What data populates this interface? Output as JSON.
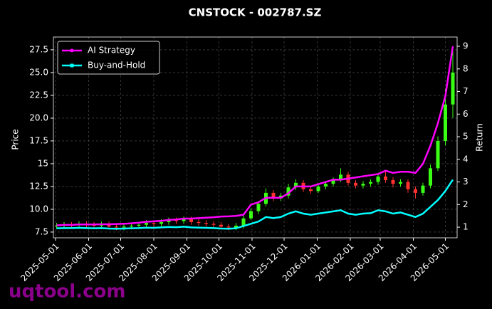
{
  "chart_data": {
    "type": "candlestick",
    "title": "CNSTOCK - 002787.SZ",
    "y_label": "Price",
    "y2_label": "Return",
    "watermark": "uqtool.com",
    "x": [
      "2025-05-02",
      "2025-05-09",
      "2025-05-16",
      "2025-05-23",
      "2025-05-30",
      "2025-06-06",
      "2025-06-13",
      "2025-06-20",
      "2025-06-27",
      "2025-07-04",
      "2025-07-11",
      "2025-07-18",
      "2025-07-25",
      "2025-08-01",
      "2025-08-08",
      "2025-08-15",
      "2025-08-22",
      "2025-08-29",
      "2025-09-05",
      "2025-09-12",
      "2025-09-19",
      "2025-09-26",
      "2025-10-03",
      "2025-10-10",
      "2025-10-17",
      "2025-10-24",
      "2025-10-31",
      "2025-11-07",
      "2025-11-14",
      "2025-11-21",
      "2025-11-28",
      "2025-12-05",
      "2025-12-12",
      "2025-12-19",
      "2025-12-26",
      "2026-01-02",
      "2026-01-09",
      "2026-01-16",
      "2026-01-23",
      "2026-01-30",
      "2026-02-06",
      "2026-02-13",
      "2026-02-20",
      "2026-02-27",
      "2026-03-06",
      "2026-03-13",
      "2026-03-20",
      "2026-03-27",
      "2026-04-03",
      "2026-04-10",
      "2026-04-17",
      "2026-04-24",
      "2026-05-01",
      "2026-05-08"
    ],
    "open": [
      8.15,
      8.2,
      8.3,
      8.25,
      8.4,
      8.3,
      8.2,
      8.35,
      8.1,
      8.0,
      8.1,
      8.2,
      8.3,
      8.5,
      8.4,
      8.6,
      8.8,
      8.7,
      8.9,
      8.6,
      8.5,
      8.4,
      8.3,
      8.1,
      8.0,
      8.2,
      9.0,
      9.8,
      10.6,
      11.8,
      11.2,
      11.5,
      12.4,
      12.9,
      12.2,
      12.0,
      12.5,
      12.8,
      13.2,
      13.8,
      12.9,
      12.6,
      12.8,
      13.0,
      13.6,
      13.2,
      12.8,
      13.0,
      12.2,
      11.8,
      12.6,
      14.5,
      17.5,
      21.5
    ],
    "high": [
      8.5,
      8.6,
      8.6,
      8.7,
      8.7,
      8.6,
      8.65,
      8.65,
      8.4,
      8.4,
      8.5,
      8.6,
      8.8,
      8.8,
      8.9,
      9.1,
      9.1,
      9.2,
      9.2,
      8.9,
      8.8,
      8.7,
      8.6,
      8.4,
      8.5,
      9.3,
      10.1,
      10.9,
      12.3,
      12.1,
      11.8,
      12.8,
      13.3,
      13.2,
      12.5,
      12.8,
      13.1,
      13.5,
      14.5,
      14.1,
      13.2,
      13.1,
      13.3,
      14.0,
      14.2,
      13.5,
      13.3,
      13.3,
      12.5,
      12.9,
      14.9,
      18.0,
      23.2,
      27.4
    ],
    "low": [
      7.85,
      7.9,
      7.95,
      7.95,
      8.0,
      7.9,
      7.9,
      7.8,
      7.7,
      7.7,
      7.8,
      7.9,
      8.0,
      8.1,
      8.1,
      8.3,
      8.4,
      8.4,
      8.3,
      8.2,
      8.1,
      8.0,
      7.8,
      7.7,
      7.7,
      7.9,
      8.8,
      9.5,
      10.3,
      10.9,
      10.9,
      11.2,
      12.1,
      11.9,
      11.7,
      11.8,
      12.2,
      12.5,
      13.0,
      12.6,
      12.3,
      12.3,
      12.5,
      12.7,
      12.9,
      12.4,
      12.5,
      11.8,
      11.2,
      11.5,
      12.3,
      14.2,
      17.0,
      20.0
    ],
    "close": [
      8.2,
      8.3,
      8.25,
      8.4,
      8.3,
      8.2,
      8.35,
      8.1,
      8.0,
      8.1,
      8.2,
      8.3,
      8.5,
      8.4,
      8.6,
      8.8,
      8.7,
      8.9,
      8.6,
      8.5,
      8.4,
      8.3,
      8.1,
      8.0,
      8.2,
      9.0,
      9.8,
      10.6,
      11.8,
      11.2,
      11.5,
      12.4,
      12.9,
      12.2,
      12.0,
      12.5,
      12.8,
      13.2,
      13.8,
      12.9,
      12.6,
      12.8,
      13.0,
      13.6,
      13.2,
      12.8,
      13.0,
      12.2,
      11.8,
      12.6,
      14.5,
      17.5,
      21.5,
      25.0
    ],
    "up_color": "#39ff14",
    "down_color": "#ff3030",
    "series": [
      {
        "name": "AI Strategy",
        "color": "#ff00ff",
        "axis": "y2",
        "values": [
          1.08,
          1.1,
          1.1,
          1.12,
          1.12,
          1.12,
          1.13,
          1.13,
          1.14,
          1.15,
          1.17,
          1.2,
          1.24,
          1.26,
          1.28,
          1.32,
          1.34,
          1.38,
          1.38,
          1.4,
          1.42,
          1.44,
          1.47,
          1.48,
          1.5,
          1.55,
          2.0,
          2.1,
          2.3,
          2.3,
          2.3,
          2.5,
          2.8,
          2.8,
          2.8,
          2.9,
          3.0,
          3.1,
          3.1,
          3.15,
          3.2,
          3.25,
          3.3,
          3.35,
          3.5,
          3.4,
          3.45,
          3.45,
          3.4,
          3.8,
          4.6,
          5.6,
          6.8,
          9.0
        ]
      },
      {
        "name": "Buy-and-Hold",
        "color": "#00ffff",
        "axis": "y2",
        "values": [
          0.95,
          0.96,
          0.96,
          0.97,
          0.96,
          0.95,
          0.96,
          0.94,
          0.93,
          0.94,
          0.95,
          0.96,
          0.98,
          0.97,
          0.99,
          1.01,
          1.0,
          1.02,
          0.99,
          0.98,
          0.97,
          0.96,
          0.94,
          0.93,
          0.95,
          1.05,
          1.15,
          1.25,
          1.45,
          1.4,
          1.45,
          1.6,
          1.7,
          1.6,
          1.55,
          1.6,
          1.65,
          1.7,
          1.75,
          1.6,
          1.55,
          1.6,
          1.62,
          1.75,
          1.7,
          1.6,
          1.65,
          1.55,
          1.45,
          1.6,
          1.9,
          2.2,
          2.6,
          3.1
        ]
      }
    ],
    "xlim": [
      "2025-04-29",
      "2026-05-12"
    ],
    "xticks": [
      "2025-05-01",
      "2025-06-01",
      "2025-07-01",
      "2025-08-01",
      "2025-09-01",
      "2025-10-01",
      "2025-11-01",
      "2025-12-01",
      "2026-01-01",
      "2026-02-01",
      "2026-03-01",
      "2026-04-01",
      "2026-05-01"
    ],
    "ylim": [
      6.87,
      28.9
    ],
    "yticks": [
      7.5,
      {
        "value": 10,
        "label": "10.0"
      },
      12.5,
      15.0,
      17.5,
      {
        "value": 20,
        "label": "20.0"
      },
      22.5,
      {
        "value": 25,
        "label": "25.0"
      },
      27.5
    ],
    "y2lim": [
      0.53,
      9.41
    ],
    "y2ticks": [
      1,
      2,
      3,
      4,
      5,
      6,
      7,
      8,
      9
    ],
    "grid": true,
    "legend": "upper left"
  }
}
